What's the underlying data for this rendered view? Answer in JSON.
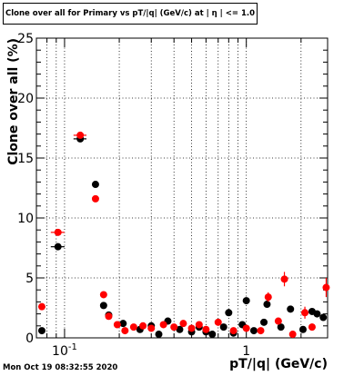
{
  "chart_data": {
    "type": "scatter",
    "title": "Clone  over all for Primary vs pT/|q| (GeV/c) at |  η | <= 1.0",
    "xlabel": "pT/|q| (GeV/c)",
    "ylabel": "Clone  over all (%)",
    "x_scale": "log",
    "xlim": [
      0.07,
      2.8
    ],
    "ylim": [
      0,
      25
    ],
    "x_tick_labels": [
      {
        "value": 0.1,
        "label": "10",
        "exp": "-1"
      },
      {
        "value": 1,
        "label": "1",
        "exp": ""
      }
    ],
    "y_ticks": [
      0,
      5,
      10,
      15,
      20,
      25
    ],
    "grid": true,
    "series": [
      {
        "color": "#000000",
        "points": [
          {
            "x": 0.075,
            "y": 0.6
          },
          {
            "x": 0.092,
            "y": 7.6,
            "xerr": 0.008
          },
          {
            "x": 0.122,
            "y": 16.6,
            "xerr": 0.01
          },
          {
            "x": 0.148,
            "y": 12.8
          },
          {
            "x": 0.164,
            "y": 2.7
          },
          {
            "x": 0.175,
            "y": 1.9
          },
          {
            "x": 0.21,
            "y": 1.2
          },
          {
            "x": 0.26,
            "y": 0.7
          },
          {
            "x": 0.3,
            "y": 1.0
          },
          {
            "x": 0.33,
            "y": 0.3
          },
          {
            "x": 0.37,
            "y": 1.4
          },
          {
            "x": 0.43,
            "y": 0.7
          },
          {
            "x": 0.5,
            "y": 0.5
          },
          {
            "x": 0.55,
            "y": 0.9
          },
          {
            "x": 0.6,
            "y": 0.5
          },
          {
            "x": 0.65,
            "y": 0.3
          },
          {
            "x": 0.75,
            "y": 0.9
          },
          {
            "x": 0.8,
            "y": 2.1
          },
          {
            "x": 0.85,
            "y": 0.4
          },
          {
            "x": 0.95,
            "y": 1.1
          },
          {
            "x": 1.0,
            "y": 3.1
          },
          {
            "x": 1.1,
            "y": 0.6
          },
          {
            "x": 1.25,
            "y": 1.3
          },
          {
            "x": 1.3,
            "y": 2.8
          },
          {
            "x": 1.55,
            "y": 0.9
          },
          {
            "x": 1.75,
            "y": 2.4
          },
          {
            "x": 2.05,
            "y": 0.7
          },
          {
            "x": 2.3,
            "y": 2.2
          },
          {
            "x": 2.45,
            "y": 2.0
          },
          {
            "x": 2.65,
            "y": 1.7
          }
        ]
      },
      {
        "color": "#ff0000",
        "points": [
          {
            "x": 0.075,
            "y": 2.6
          },
          {
            "x": 0.092,
            "y": 8.8,
            "xerr": 0.008
          },
          {
            "x": 0.122,
            "y": 16.9,
            "xerr": 0.01
          },
          {
            "x": 0.148,
            "y": 11.6
          },
          {
            "x": 0.164,
            "y": 3.6
          },
          {
            "x": 0.175,
            "y": 1.8
          },
          {
            "x": 0.195,
            "y": 1.1
          },
          {
            "x": 0.215,
            "y": 0.6
          },
          {
            "x": 0.24,
            "y": 0.9
          },
          {
            "x": 0.27,
            "y": 1.0
          },
          {
            "x": 0.3,
            "y": 0.8
          },
          {
            "x": 0.35,
            "y": 1.1
          },
          {
            "x": 0.4,
            "y": 0.9
          },
          {
            "x": 0.45,
            "y": 1.2
          },
          {
            "x": 0.5,
            "y": 0.8
          },
          {
            "x": 0.55,
            "y": 1.1
          },
          {
            "x": 0.6,
            "y": 0.7
          },
          {
            "x": 0.7,
            "y": 1.3
          },
          {
            "x": 0.85,
            "y": 0.6
          },
          {
            "x": 1.0,
            "y": 0.8
          },
          {
            "x": 1.2,
            "y": 0.6
          },
          {
            "x": 1.32,
            "y": 3.4,
            "yerr": 0.4
          },
          {
            "x": 1.5,
            "y": 1.4
          },
          {
            "x": 1.62,
            "y": 4.9,
            "yerr": 0.6
          },
          {
            "x": 1.8,
            "y": 0.3
          },
          {
            "x": 2.1,
            "y": 2.1,
            "yerr": 0.5
          },
          {
            "x": 2.3,
            "y": 0.9,
            "yerr": 0.3
          },
          {
            "x": 2.75,
            "y": 4.2,
            "yerr": 0.8
          }
        ]
      }
    ]
  },
  "timestamp": "Mon Oct 19 08:32:55 2020"
}
